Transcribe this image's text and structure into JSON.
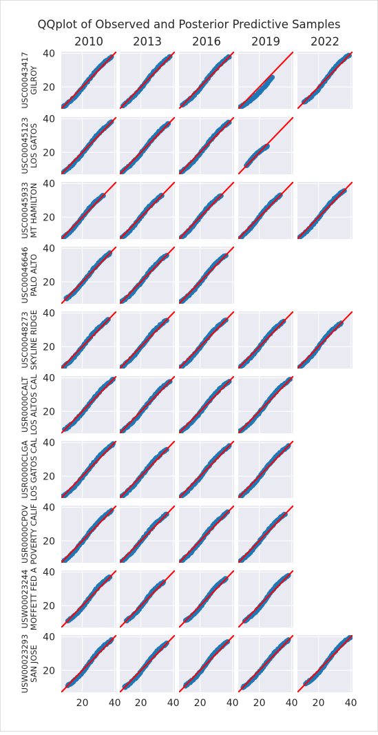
{
  "chart_data": {
    "type": "scatter",
    "title": "QQplot of Observed and Posterior Predictive Samples",
    "xlabel": "",
    "ylabel": "",
    "columns": [
      "2010",
      "2013",
      "2016",
      "2019",
      "2022"
    ],
    "rows": [
      {
        "label_line1": "USC00043417",
        "label_line2": "GILROY"
      },
      {
        "label_line1": "USC00045123",
        "label_line2": "LOS GATOS"
      },
      {
        "label_line1": "USC00045933",
        "label_line2": "MT HAMILTON"
      },
      {
        "label_line1": "USC00046646",
        "label_line2": "PALO ALTO"
      },
      {
        "label_line1": "USC00048273",
        "label_line2": "SKYLINE RIDGE"
      },
      {
        "label_line1": "USR0000CALT",
        "label_line2": "LOS ALTOS CAL"
      },
      {
        "label_line1": "USR0000CLGA",
        "label_line2": "LOS GATOS CAL"
      },
      {
        "label_line1": "USR0000CPOV",
        "label_line2": "POVERTY CALIF"
      },
      {
        "label_line1": "USW00023244",
        "label_line2": "MOFFETT FED A"
      },
      {
        "label_line1": "USW00023293",
        "label_line2": "SAN JOSE"
      }
    ],
    "xlim": [
      7,
      41
    ],
    "ylim": [
      7,
      41
    ],
    "xticks": [
      20,
      40
    ],
    "yticks": [
      20,
      40
    ],
    "grid": true,
    "reference_line": "y = x",
    "point_color": "#1f77b4",
    "line_color": "#ff0000",
    "panel_background": "#eaeaf2",
    "panels": [
      [
        {
          "present": true,
          "min": 8,
          "max": 38,
          "pattern": "s"
        },
        {
          "present": true,
          "min": 9,
          "max": 38,
          "pattern": "s"
        },
        {
          "present": true,
          "min": 9,
          "max": 38,
          "pattern": "s"
        },
        {
          "present": true,
          "min": 8,
          "max": 28,
          "pattern": "under"
        },
        {
          "present": true,
          "min": 11,
          "max": 39,
          "pattern": "flat"
        }
      ],
      [
        {
          "present": true,
          "min": 8,
          "max": 38,
          "pattern": "s"
        },
        {
          "present": true,
          "min": 8,
          "max": 37,
          "pattern": "s"
        },
        {
          "present": true,
          "min": 8,
          "max": 38,
          "pattern": "s"
        },
        {
          "present": true,
          "min": 12,
          "max": 25,
          "pattern": "over"
        },
        {
          "present": false
        }
      ],
      [
        {
          "present": true,
          "min": 6,
          "max": 33,
          "pattern": "s"
        },
        {
          "present": true,
          "min": 6,
          "max": 33,
          "pattern": "s"
        },
        {
          "present": true,
          "min": 6,
          "max": 33,
          "pattern": "s"
        },
        {
          "present": true,
          "min": 6,
          "max": 33,
          "pattern": "s"
        },
        {
          "present": true,
          "min": 7,
          "max": 36,
          "pattern": "s"
        }
      ],
      [
        {
          "present": true,
          "min": 10,
          "max": 37,
          "pattern": "s"
        },
        {
          "present": true,
          "min": 8,
          "max": 36,
          "pattern": "s"
        },
        {
          "present": true,
          "min": 8,
          "max": 36,
          "pattern": "s"
        },
        {
          "present": false
        },
        {
          "present": false
        }
      ],
      [
        {
          "present": true,
          "min": 6,
          "max": 36,
          "pattern": "s"
        },
        {
          "present": true,
          "min": 7,
          "max": 36,
          "pattern": "s"
        },
        {
          "present": true,
          "min": 7,
          "max": 36,
          "pattern": "s"
        },
        {
          "present": true,
          "min": 7,
          "max": 35,
          "pattern": "s"
        },
        {
          "present": true,
          "min": 7,
          "max": 34,
          "pattern": "flat"
        }
      ],
      [
        {
          "present": true,
          "min": 9,
          "max": 39,
          "pattern": "s"
        },
        {
          "present": true,
          "min": 8,
          "max": 38,
          "pattern": "s"
        },
        {
          "present": true,
          "min": 8,
          "max": 38,
          "pattern": "s"
        },
        {
          "present": true,
          "min": 8,
          "max": 39,
          "pattern": "s"
        },
        {
          "present": false
        }
      ],
      [
        {
          "present": true,
          "min": 7,
          "max": 39,
          "pattern": "s"
        },
        {
          "present": true,
          "min": 7,
          "max": 36,
          "pattern": "s"
        },
        {
          "present": true,
          "min": 7,
          "max": 38,
          "pattern": "s"
        },
        {
          "present": true,
          "min": 7,
          "max": 38,
          "pattern": "s"
        },
        {
          "present": false
        }
      ],
      [
        {
          "present": true,
          "min": 6,
          "max": 38,
          "pattern": "s"
        },
        {
          "present": true,
          "min": 6,
          "max": 36,
          "pattern": "s"
        },
        {
          "present": true,
          "min": 7,
          "max": 37,
          "pattern": "s"
        },
        {
          "present": true,
          "min": 7,
          "max": 36,
          "pattern": "s"
        },
        {
          "present": false
        }
      ],
      [
        {
          "present": true,
          "min": 11,
          "max": 37,
          "pattern": "flat"
        },
        {
          "present": true,
          "min": 11,
          "max": 34,
          "pattern": "flat"
        },
        {
          "present": true,
          "min": 11,
          "max": 36,
          "pattern": "flat"
        },
        {
          "present": true,
          "min": 11,
          "max": 38,
          "pattern": "flat"
        },
        {
          "present": false
        }
      ],
      [
        {
          "present": true,
          "min": 11,
          "max": 38,
          "pattern": "flat"
        },
        {
          "present": true,
          "min": 10,
          "max": 36,
          "pattern": "flat"
        },
        {
          "present": true,
          "min": 11,
          "max": 37,
          "pattern": "flat"
        },
        {
          "present": true,
          "min": 10,
          "max": 38,
          "pattern": "s"
        },
        {
          "present": true,
          "min": 12,
          "max": 40,
          "pattern": "flat"
        }
      ]
    ]
  }
}
